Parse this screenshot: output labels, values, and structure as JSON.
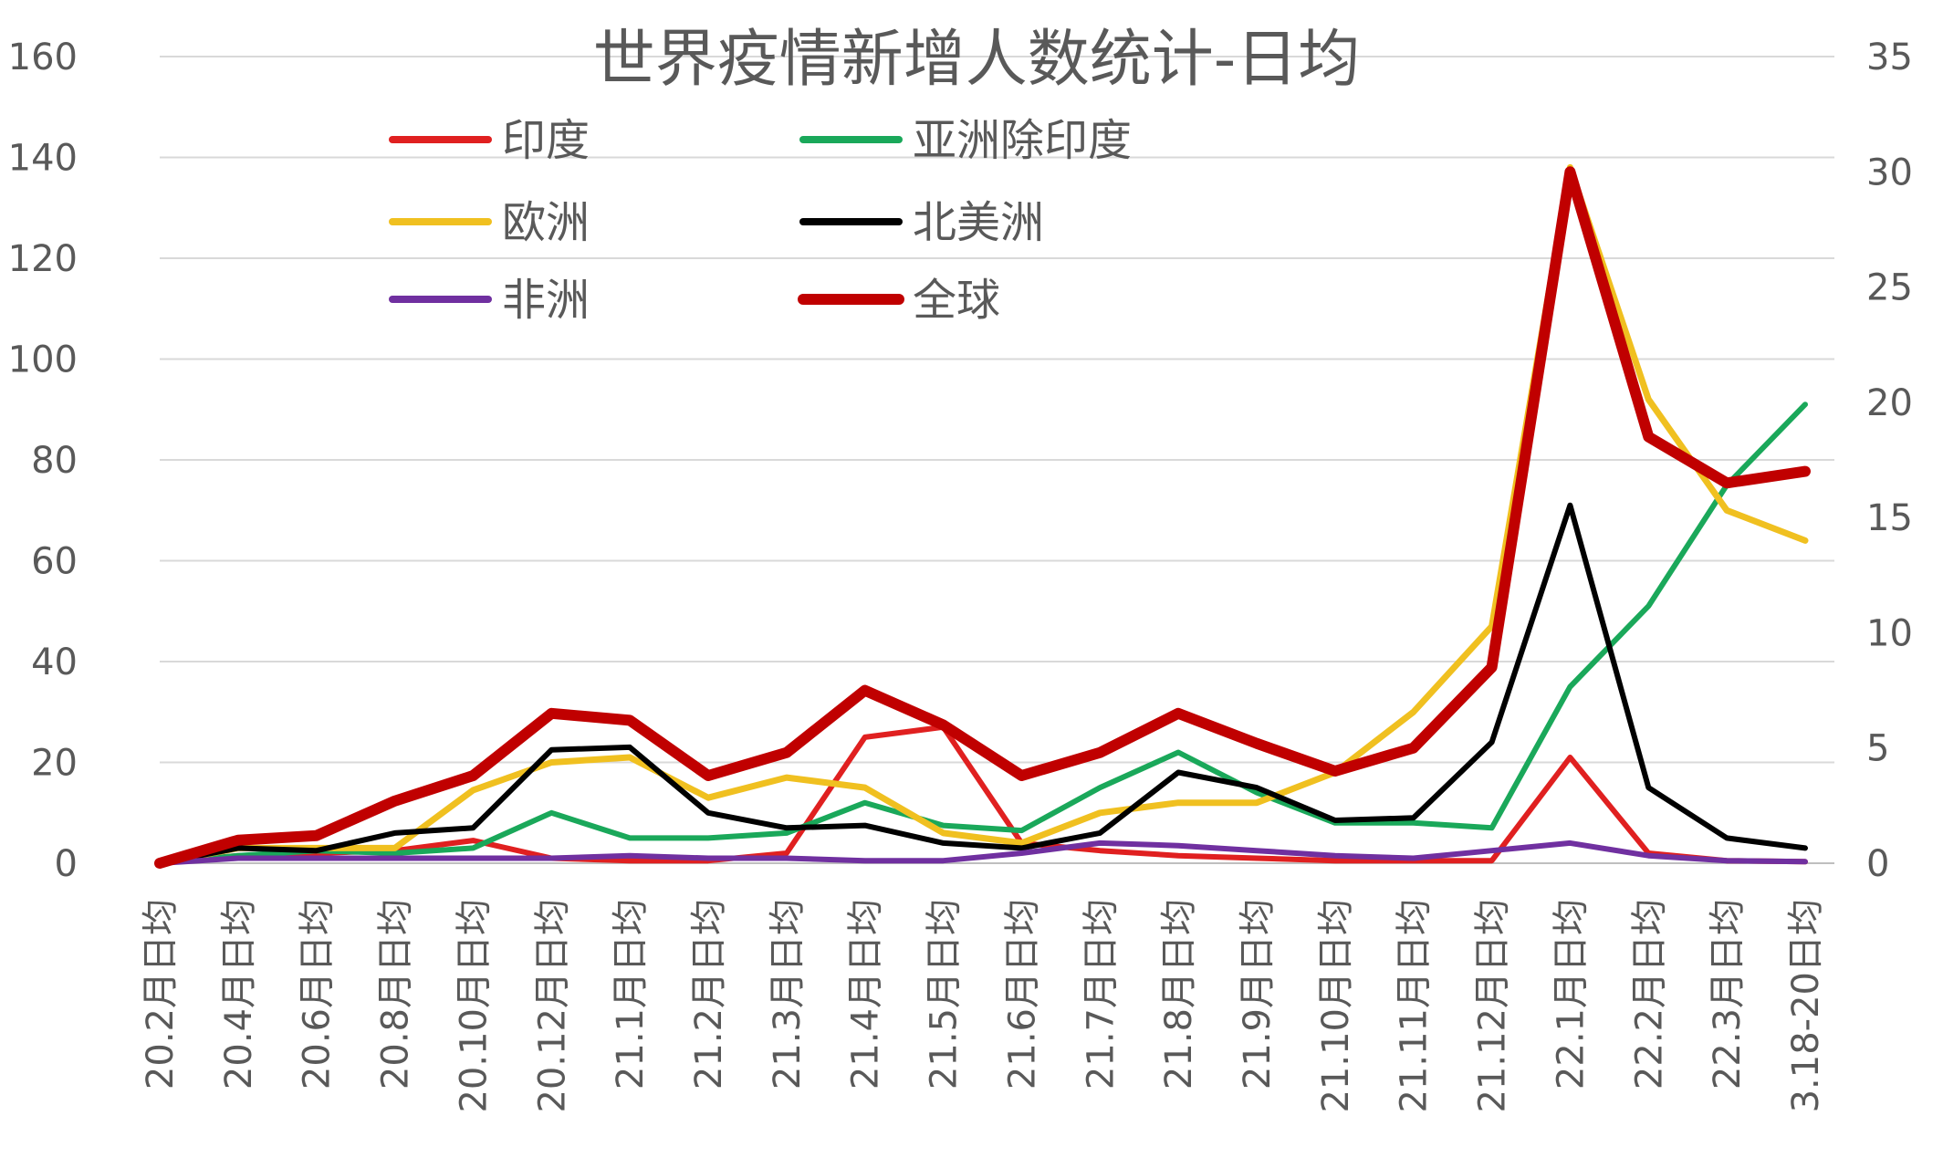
{
  "chart_data": {
    "type": "line",
    "title": "世界疫情新增人数统计-日均",
    "categories": [
      "20.2月日均",
      "20.4月日均",
      "20.6月日均",
      "20.8月日均",
      "20.10月日均",
      "20.12月日均",
      "21.1月日均",
      "21.2月日均",
      "21.3月日均",
      "21.4月日均",
      "21.5月日均",
      "21.6月日均",
      "21.7月日均",
      "21.8月日均",
      "21.9月日均",
      "21.10月日均",
      "21.11月日均",
      "21.12月日均",
      "22.1月日均",
      "22.2月日均",
      "22.3月日均",
      "3.18-20日均"
    ],
    "y_left": {
      "ylim": [
        0,
        160
      ],
      "ticks": [
        "0",
        "20",
        "40",
        "60",
        "80",
        "100",
        "120",
        "140",
        "160"
      ]
    },
    "y_right": {
      "ylim": [
        0,
        35
      ],
      "ticks": [
        "0",
        "5",
        "10",
        "15",
        "20",
        "25",
        "30",
        "35"
      ]
    },
    "grid": true,
    "legend_position": "top-left",
    "series": [
      {
        "name": "印度",
        "axis": "left",
        "color": "#e02020",
        "width": 6,
        "values": [
          0,
          1.5,
          2,
          2.5,
          4.5,
          1,
          0.5,
          0.5,
          2,
          25,
          27,
          4,
          2.5,
          1.5,
          1,
          0.5,
          0.5,
          0.5,
          21,
          2,
          0.5,
          0.3
        ]
      },
      {
        "name": "亚洲除印度",
        "axis": "left",
        "color": "#1aa85a",
        "width": 6,
        "values": [
          0,
          1.5,
          2.5,
          2,
          3,
          10,
          5,
          5,
          6,
          12,
          7.5,
          6.5,
          15,
          22,
          14,
          8,
          8,
          7,
          35,
          51,
          75,
          91
        ]
      },
      {
        "name": "欧洲",
        "axis": "left",
        "color": "#f0c020",
        "width": 7,
        "values": [
          0,
          3,
          3,
          3,
          14.5,
          20,
          21,
          13,
          17,
          15,
          6,
          4,
          10,
          12,
          12,
          18,
          30,
          47,
          138,
          92,
          70,
          64
        ]
      },
      {
        "name": "北美洲",
        "axis": "left",
        "color": "#000000",
        "width": 6,
        "values": [
          0,
          3,
          2.5,
          6,
          7,
          22.5,
          23,
          10,
          7,
          7.5,
          4,
          3,
          6,
          18,
          15,
          8.5,
          9,
          24,
          71,
          15,
          5,
          3
        ]
      },
      {
        "name": "非洲",
        "axis": "left",
        "color": "#7030a0",
        "width": 6,
        "values": [
          0,
          1,
          1,
          1,
          1,
          1,
          1.5,
          1,
          1,
          0.5,
          0.5,
          2,
          4,
          3.5,
          2.5,
          1.5,
          1,
          2.5,
          4,
          1.5,
          0.5,
          0.3
        ]
      },
      {
        "name": "全球",
        "axis": "right",
        "color": "#c00000",
        "width": 12,
        "values": [
          0,
          1,
          1.2,
          2.7,
          3.8,
          6.5,
          6.2,
          3.8,
          4.8,
          7.5,
          6,
          3.8,
          4.8,
          6.5,
          5.2,
          4,
          5,
          8.5,
          30,
          18.5,
          16.5,
          17
        ]
      }
    ]
  }
}
